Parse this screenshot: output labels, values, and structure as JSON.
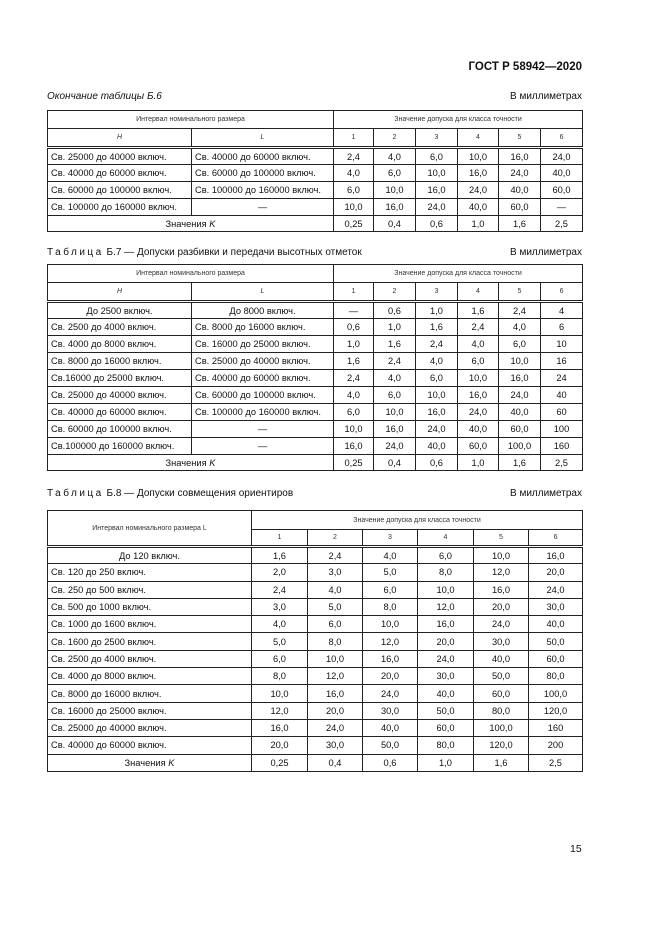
{
  "header": {
    "standard": "ГОСТ Р 58942—2020"
  },
  "tables": [
    {
      "caption_prefix": "",
      "caption": "Окончание таблицы Б.6",
      "unit": "В миллиметрах",
      "group_left": "Интервал номинального размера",
      "group_right": "Значение допуска для класса точности",
      "col_h": "H",
      "col_l": "L",
      "classes": [
        "1",
        "2",
        "3",
        "4",
        "5",
        "6"
      ],
      "rows": [
        [
          "Св. 25000 до 40000 включ.",
          "Св. 40000 до 60000 включ.",
          "2,4",
          "4,0",
          "6,0",
          "10,0",
          "16,0",
          "24,0"
        ],
        [
          "Св. 40000 до 60000 включ.",
          "Св. 60000 до 100000 включ.",
          "4,0",
          "6,0",
          "10,0",
          "16,0",
          "24,0",
          "40,0"
        ],
        [
          "Св. 60000 до 100000 включ.",
          "Св. 100000 до 160000 включ.",
          "6,0",
          "10,0",
          "16,0",
          "24,0",
          "40,0",
          "60,0"
        ],
        [
          "Св. 100000 до 160000 включ.",
          "—",
          "10,0",
          "16,0",
          "24,0",
          "40,0",
          "60,0",
          "—"
        ]
      ],
      "k_label": "Значения K",
      "k_values": [
        "0,25",
        "0,4",
        "0,6",
        "1,0",
        "1,6",
        "2,5"
      ]
    },
    {
      "caption_prefix": "Таблица",
      "caption": "Б.7 — Допуски разбивки и передачи высотных отметок",
      "unit": "В миллиметрах",
      "group_left": "Интервал номинального размера",
      "group_right": "Значение допуска для класса точности",
      "col_h": "H",
      "col_l": "L",
      "classes": [
        "1",
        "2",
        "3",
        "4",
        "5",
        "6"
      ],
      "rows": [
        [
          "До 2500 включ.",
          "До 8000 включ.",
          "—",
          "0,6",
          "1,0",
          "1,6",
          "2,4",
          "4"
        ],
        [
          "Св. 2500 до 4000 включ.",
          "Св. 8000 до 16000 включ.",
          "0,6",
          "1,0",
          "1,6",
          "2,4",
          "4,0",
          "6"
        ],
        [
          "Св. 4000 до 8000 включ.",
          "Св. 16000 до 25000 включ.",
          "1,0",
          "1,6",
          "2,4",
          "4,0",
          "6,0",
          "10"
        ],
        [
          "Св. 8000 до 16000 включ.",
          "Св. 25000 до 40000 включ.",
          "1,6",
          "2,4",
          "4,0",
          "6,0",
          "10,0",
          "16"
        ],
        [
          "Св.16000 до 25000 включ.",
          "Св. 40000 до 60000 включ.",
          "2,4",
          "4,0",
          "6,0",
          "10,0",
          "16,0",
          "24"
        ],
        [
          "Св. 25000 до 40000 включ.",
          "Св. 60000 до 100000 включ.",
          "4,0",
          "6,0",
          "10,0",
          "16,0",
          "24,0",
          "40"
        ],
        [
          "Св. 40000 до 60000 включ.",
          "Св. 100000 до 160000 включ.",
          "6,0",
          "10,0",
          "16,0",
          "24,0",
          "40,0",
          "60"
        ],
        [
          "Св. 60000 до 100000 включ.",
          "—",
          "10,0",
          "16,0",
          "24,0",
          "40,0",
          "60,0",
          "100"
        ],
        [
          "Св.100000 до 160000 включ.",
          "—",
          "16,0",
          "24,0",
          "40,0",
          "60,0",
          "100,0",
          "160"
        ]
      ],
      "k_label": "Значения K",
      "k_values": [
        "0,25",
        "0,4",
        "0,6",
        "1,0",
        "1,6",
        "2,5"
      ]
    },
    {
      "caption_prefix": "Таблица",
      "caption": "Б.8 — Допуски совмещения ориентиров",
      "unit": "В миллиметрах",
      "group_left": "Интервал номинального размера L",
      "group_right": "Значение допуска для класса точности",
      "classes": [
        "1",
        "2",
        "3",
        "4",
        "5",
        "6"
      ],
      "rows": [
        [
          "До 120 включ.",
          "1,6",
          "2,4",
          "4,0",
          "6,0",
          "10,0",
          "16,0"
        ],
        [
          "Св. 120 до 250 включ.",
          "2,0",
          "3,0",
          "5,0",
          "8,0",
          "12,0",
          "20,0"
        ],
        [
          "Св. 250 до 500 включ.",
          "2,4",
          "4,0",
          "6,0",
          "10,0",
          "16,0",
          "24,0"
        ],
        [
          "Св. 500 до 1000 включ.",
          "3,0",
          "5,0",
          "8,0",
          "12,0",
          "20,0",
          "30,0"
        ],
        [
          "Св. 1000 до 1600 включ.",
          "4,0",
          "6,0",
          "10,0",
          "16,0",
          "24,0",
          "40,0"
        ],
        [
          "Св. 1600 до 2500 включ.",
          "5,0",
          "8,0",
          "12,0",
          "20,0",
          "30,0",
          "50,0"
        ],
        [
          "Св. 2500 до 4000 включ.",
          "6,0",
          "10,0",
          "16,0",
          "24,0",
          "40,0",
          "60,0"
        ],
        [
          "Св. 4000 до 8000 включ.",
          "8,0",
          "12,0",
          "20,0",
          "30,0",
          "50,0",
          "80,0"
        ],
        [
          "Св. 8000 до 16000 включ.",
          "10,0",
          "16,0",
          "24,0",
          "40,0",
          "60,0",
          "100,0"
        ],
        [
          "Св. 16000 до 25000 включ.",
          "12,0",
          "20,0",
          "30,0",
          "50,0",
          "80,0",
          "120,0"
        ],
        [
          "Св. 25000 до 40000 включ.",
          "16,0",
          "24,0",
          "40,0",
          "60,0",
          "100,0",
          "160"
        ],
        [
          "Св. 40000 до 60000 включ.",
          "20,0",
          "30,0",
          "50,0",
          "80,0",
          "120,0",
          "200"
        ]
      ],
      "k_label": "Значения K",
      "k_values": [
        "0,25",
        "0,4",
        "0,6",
        "1,0",
        "1,6",
        "2,5"
      ]
    }
  ],
  "page_number": "15"
}
